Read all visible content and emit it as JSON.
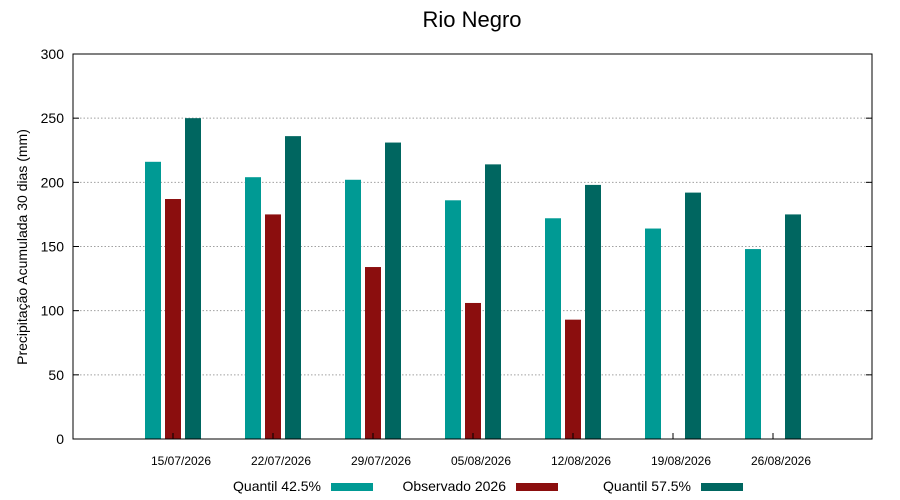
{
  "chart_data": {
    "type": "bar",
    "title": "Rio Negro",
    "xlabel": "",
    "ylabel": "Precipitação Acumulada 30 dias (mm)",
    "ylim": [
      0,
      300
    ],
    "yticks": [
      0,
      50,
      100,
      150,
      200,
      250,
      300
    ],
    "grid": true,
    "legend_position": "bottom",
    "categories": [
      "15/07/2026",
      "22/07/2026",
      "29/07/2026",
      "05/08/2026",
      "12/08/2026",
      "19/08/2026",
      "26/08/2026"
    ],
    "series": [
      {
        "name": "Quantil 42.5%",
        "color": "#009a94",
        "values": [
          216,
          204,
          202,
          186,
          172,
          164,
          148
        ]
      },
      {
        "name": "Observado 2026",
        "color": "#8b0e0e",
        "values": [
          187,
          175,
          134,
          106,
          93,
          null,
          null
        ]
      },
      {
        "name": "Quantil 57.5%",
        "color": "#006660",
        "values": [
          250,
          236,
          231,
          214,
          198,
          192,
          175
        ]
      }
    ]
  }
}
